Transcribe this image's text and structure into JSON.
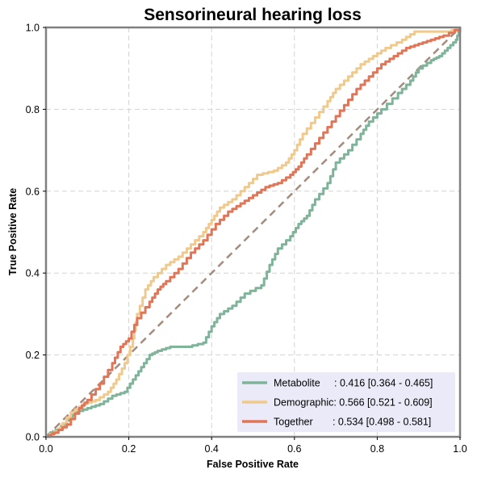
{
  "chart_data": {
    "type": "line",
    "title": "Sensorineural hearing loss",
    "xlabel": "False Positive Rate",
    "ylabel": "True Positive Rate",
    "xlim": [
      0,
      1
    ],
    "ylim": [
      0,
      1
    ],
    "xticks": [
      "0.0",
      "0.2",
      "0.4",
      "0.6",
      "0.8",
      "1.0"
    ],
    "yticks": [
      "0.0",
      "0.2",
      "0.4",
      "0.6",
      "0.8",
      "1.0"
    ],
    "grid": true,
    "legend_position": "lower-right",
    "diagonal": {
      "color": "#a58b7e",
      "style": "dashed"
    },
    "series": [
      {
        "name": "Metabolite",
        "legend_label": "Metabolite     : 0.416 [0.364 - 0.465]",
        "color": "#7fb49a",
        "points": [
          [
            0,
            0
          ],
          [
            0.01,
            0.01
          ],
          [
            0.03,
            0.02
          ],
          [
            0.05,
            0.04
          ],
          [
            0.07,
            0.06
          ],
          [
            0.1,
            0.07
          ],
          [
            0.13,
            0.08
          ],
          [
            0.16,
            0.1
          ],
          [
            0.19,
            0.11
          ],
          [
            0.21,
            0.14
          ],
          [
            0.23,
            0.17
          ],
          [
            0.25,
            0.2
          ],
          [
            0.27,
            0.21
          ],
          [
            0.3,
            0.22
          ],
          [
            0.34,
            0.22
          ],
          [
            0.38,
            0.23
          ],
          [
            0.4,
            0.27
          ],
          [
            0.42,
            0.3
          ],
          [
            0.45,
            0.32
          ],
          [
            0.48,
            0.35
          ],
          [
            0.52,
            0.37
          ],
          [
            0.54,
            0.42
          ],
          [
            0.56,
            0.46
          ],
          [
            0.59,
            0.49
          ],
          [
            0.61,
            0.52
          ],
          [
            0.63,
            0.54
          ],
          [
            0.65,
            0.58
          ],
          [
            0.68,
            0.62
          ],
          [
            0.7,
            0.67
          ],
          [
            0.73,
            0.7
          ],
          [
            0.76,
            0.74
          ],
          [
            0.78,
            0.77
          ],
          [
            0.81,
            0.8
          ],
          [
            0.85,
            0.84
          ],
          [
            0.88,
            0.87
          ],
          [
            0.9,
            0.9
          ],
          [
            0.93,
            0.92
          ],
          [
            0.95,
            0.93
          ],
          [
            0.97,
            0.95
          ],
          [
            0.99,
            0.97
          ],
          [
            1,
            1
          ]
        ]
      },
      {
        "name": "Demographic",
        "legend_label": "Demographic: 0.566 [0.521 - 0.609]",
        "color": "#f0c98c",
        "points": [
          [
            0,
            0
          ],
          [
            0.03,
            0.02
          ],
          [
            0.06,
            0.06
          ],
          [
            0.09,
            0.08
          ],
          [
            0.12,
            0.09
          ],
          [
            0.15,
            0.11
          ],
          [
            0.17,
            0.14
          ],
          [
            0.19,
            0.18
          ],
          [
            0.21,
            0.24
          ],
          [
            0.22,
            0.3
          ],
          [
            0.24,
            0.36
          ],
          [
            0.26,
            0.39
          ],
          [
            0.29,
            0.42
          ],
          [
            0.32,
            0.44
          ],
          [
            0.35,
            0.47
          ],
          [
            0.38,
            0.5
          ],
          [
            0.4,
            0.53
          ],
          [
            0.42,
            0.56
          ],
          [
            0.45,
            0.58
          ],
          [
            0.48,
            0.61
          ],
          [
            0.51,
            0.64
          ],
          [
            0.55,
            0.65
          ],
          [
            0.58,
            0.67
          ],
          [
            0.6,
            0.7
          ],
          [
            0.62,
            0.74
          ],
          [
            0.65,
            0.78
          ],
          [
            0.68,
            0.82
          ],
          [
            0.7,
            0.85
          ],
          [
            0.73,
            0.88
          ],
          [
            0.76,
            0.91
          ],
          [
            0.79,
            0.93
          ],
          [
            0.82,
            0.95
          ],
          [
            0.86,
            0.97
          ],
          [
            0.89,
            0.99
          ],
          [
            0.93,
            0.99
          ],
          [
            0.97,
            0.99
          ],
          [
            1,
            1
          ]
        ]
      },
      {
        "name": "Together",
        "legend_label": "Together       : 0.534 [0.498 - 0.581]",
        "color": "#e07557",
        "points": [
          [
            0,
            0
          ],
          [
            0.02,
            0.01
          ],
          [
            0.05,
            0.03
          ],
          [
            0.08,
            0.07
          ],
          [
            0.1,
            0.09
          ],
          [
            0.13,
            0.13
          ],
          [
            0.16,
            0.18
          ],
          [
            0.18,
            0.22
          ],
          [
            0.2,
            0.24
          ],
          [
            0.22,
            0.29
          ],
          [
            0.25,
            0.33
          ],
          [
            0.27,
            0.36
          ],
          [
            0.29,
            0.38
          ],
          [
            0.32,
            0.41
          ],
          [
            0.35,
            0.45
          ],
          [
            0.38,
            0.48
          ],
          [
            0.41,
            0.52
          ],
          [
            0.44,
            0.55
          ],
          [
            0.47,
            0.57
          ],
          [
            0.5,
            0.59
          ],
          [
            0.53,
            0.61
          ],
          [
            0.56,
            0.62
          ],
          [
            0.59,
            0.64
          ],
          [
            0.61,
            0.66
          ],
          [
            0.63,
            0.69
          ],
          [
            0.66,
            0.73
          ],
          [
            0.69,
            0.77
          ],
          [
            0.72,
            0.81
          ],
          [
            0.75,
            0.85
          ],
          [
            0.78,
            0.88
          ],
          [
            0.81,
            0.91
          ],
          [
            0.84,
            0.93
          ],
          [
            0.87,
            0.95
          ],
          [
            0.9,
            0.96
          ],
          [
            0.93,
            0.97
          ],
          [
            0.96,
            0.98
          ],
          [
            1,
            1
          ]
        ]
      }
    ]
  }
}
